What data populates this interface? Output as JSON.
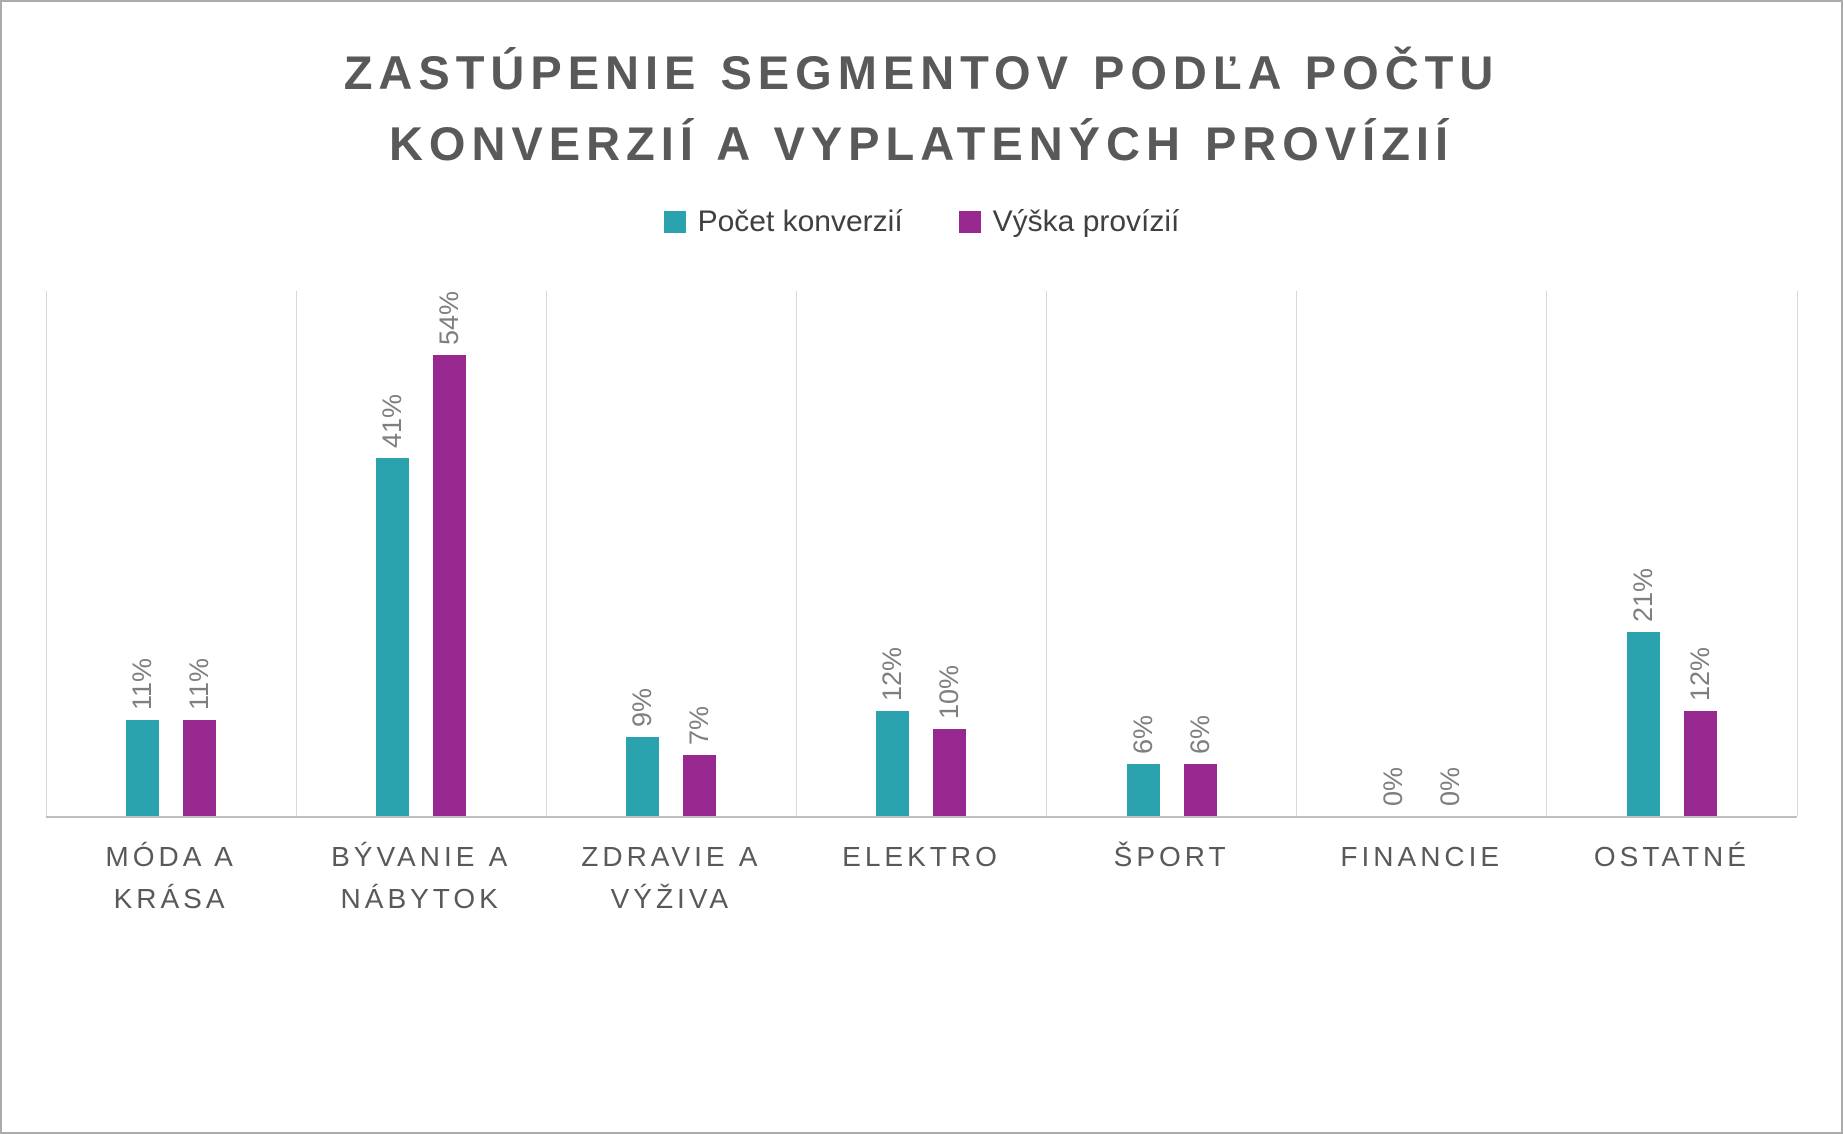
{
  "header": {
    "title_line1": "ZASTÚPENIE SEGMENTOV PODĽA POČTU",
    "title_line2": "KONVERZIÍ A VYPLATENÝCH PROVÍZIÍ"
  },
  "colors": {
    "series1": "#2ba3ae",
    "series2": "#96288f",
    "title_text": "#595959",
    "data_label_text": "#7f7f7f",
    "gridline": "#d9d9d9",
    "axis_line": "#bfbfbf"
  },
  "chart_data": {
    "type": "bar",
    "title": "ZASTÚPENIE SEGMENTOV PODĽA POČTU KONVERZIÍ A VYPLATENÝCH PROVÍZIÍ",
    "categories": [
      "MÓDA A KRÁSA",
      "BÝVANIE A NÁBYTOK",
      "ZDRAVIE A VÝŽIVA",
      "ELEKTRO",
      "ŠPORT",
      "FINANCIE",
      "OSTATNÉ"
    ],
    "series": [
      {
        "name": "Počet konverzií",
        "color": "#2ba3ae",
        "values": [
          11,
          41,
          9,
          12,
          6,
          0,
          21
        ],
        "labels": [
          "11%",
          "41%",
          "9%",
          "12%",
          "6%",
          "0%",
          "21%"
        ]
      },
      {
        "name": "Výška provízií",
        "color": "#96288f",
        "values": [
          11,
          54,
          7,
          10,
          6,
          0,
          12
        ],
        "labels": [
          "11%",
          "54%",
          "7%",
          "10%",
          "6%",
          "0%",
          "12%"
        ]
      }
    ],
    "ylim": [
      0,
      60
    ],
    "xlabel": "",
    "ylabel": "",
    "grid": "vertical-category-separators",
    "legend_position": "top",
    "data_label_orientation": "rotated-90"
  }
}
